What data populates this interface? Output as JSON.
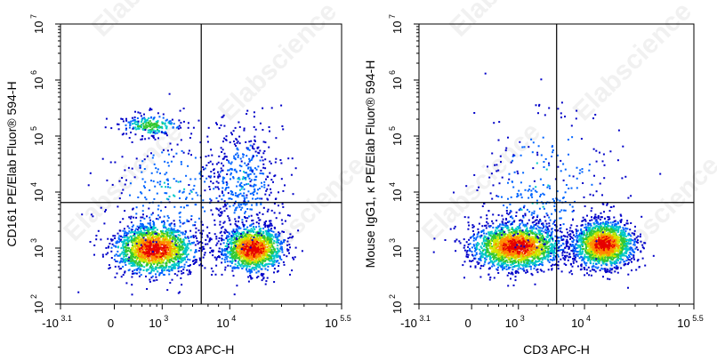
{
  "watermark": "Elabscience",
  "colors": {
    "density_low": "#0000c8",
    "density_mid": "#00c8c8",
    "density_midhigh": "#d2e600",
    "density_high": "#e60000",
    "gate_line": "#000000",
    "axis": "#000000"
  },
  "chart_data": [
    {
      "type": "scatter",
      "title": "",
      "xlabel": "CD3 APC-H",
      "ylabel": "CD161 PE/Elab Fluor® 594-H",
      "x_scale": "biexponential",
      "y_scale": "log",
      "xlim": [
        -1259,
        316228
      ],
      "ylim": [
        100,
        10000000
      ],
      "x_ticks": [
        {
          "value": -1259,
          "base": "-10",
          "exp": "3.1"
        },
        {
          "value": 0,
          "base": "0",
          "exp": ""
        },
        {
          "value": 1000,
          "base": "10",
          "exp": "3"
        },
        {
          "value": 10000,
          "base": "10",
          "exp": "4"
        },
        {
          "value": 316228,
          "base": "10",
          "exp": "5.5"
        }
      ],
      "y_ticks": [
        {
          "value": 100,
          "base": "10",
          "exp": "2"
        },
        {
          "value": 1000,
          "base": "10",
          "exp": "3"
        },
        {
          "value": 10000,
          "base": "10",
          "exp": "4"
        },
        {
          "value": 100000,
          "base": "10",
          "exp": "5"
        },
        {
          "value": 1000000,
          "base": "10",
          "exp": "6"
        },
        {
          "value": 10000000,
          "base": "10",
          "exp": "7"
        }
      ],
      "gate": {
        "x": 4000,
        "y": 6500
      },
      "populations": [
        {
          "x_center": 700,
          "y_center": 1000,
          "spread_x": 0.26,
          "spread_y": 0.22,
          "weight": 0.42,
          "density": "high"
        },
        {
          "x_center": 20000,
          "y_center": 1000,
          "spread_x": 0.2,
          "spread_y": 0.2,
          "weight": 0.35,
          "density": "high"
        },
        {
          "x_center": 600,
          "y_center": 160000,
          "spread_x": 0.2,
          "spread_y": 0.1,
          "weight": 0.05,
          "density": "mid"
        },
        {
          "x_center": 15000,
          "y_center": 15000,
          "spread_x": 0.25,
          "spread_y": 0.55,
          "weight": 0.1,
          "density": "low"
        },
        {
          "x_center": 1500,
          "y_center": 10000,
          "spread_x": 0.5,
          "spread_y": 0.6,
          "weight": 0.08,
          "density": "low"
        }
      ]
    },
    {
      "type": "scatter",
      "title": "",
      "xlabel": "CD3 APC-H",
      "ylabel": "Mouse IgG1, κ PE/Elab Fluor® 594-H",
      "x_scale": "biexponential",
      "y_scale": "log",
      "xlim": [
        -1259,
        316228
      ],
      "ylim": [
        100,
        10000000
      ],
      "x_ticks": [
        {
          "value": -1259,
          "base": "-10",
          "exp": "3.1"
        },
        {
          "value": 0,
          "base": "0",
          "exp": ""
        },
        {
          "value": 1000,
          "base": "10",
          "exp": "3"
        },
        {
          "value": 10000,
          "base": "10",
          "exp": "4"
        },
        {
          "value": 316228,
          "base": "10",
          "exp": "5.5"
        }
      ],
      "y_ticks": [
        {
          "value": 100,
          "base": "10",
          "exp": "2"
        },
        {
          "value": 1000,
          "base": "10",
          "exp": "3"
        },
        {
          "value": 10000,
          "base": "10",
          "exp": "4"
        },
        {
          "value": 100000,
          "base": "10",
          "exp": "5"
        },
        {
          "value": 1000000,
          "base": "10",
          "exp": "6"
        },
        {
          "value": 10000000,
          "base": "10",
          "exp": "7"
        }
      ],
      "gate": {
        "x": 4000,
        "y": 6500
      },
      "populations": [
        {
          "x_center": 900,
          "y_center": 1100,
          "spread_x": 0.3,
          "spread_y": 0.2,
          "weight": 0.5,
          "density": "high"
        },
        {
          "x_center": 18000,
          "y_center": 1200,
          "spread_x": 0.2,
          "spread_y": 0.2,
          "weight": 0.42,
          "density": "high"
        },
        {
          "x_center": 3000,
          "y_center": 20000,
          "spread_x": 0.5,
          "spread_y": 0.7,
          "weight": 0.04,
          "density": "low"
        },
        {
          "x_center": 2000,
          "y_center": 6000,
          "spread_x": 0.5,
          "spread_y": 0.4,
          "weight": 0.04,
          "density": "low"
        }
      ]
    }
  ]
}
